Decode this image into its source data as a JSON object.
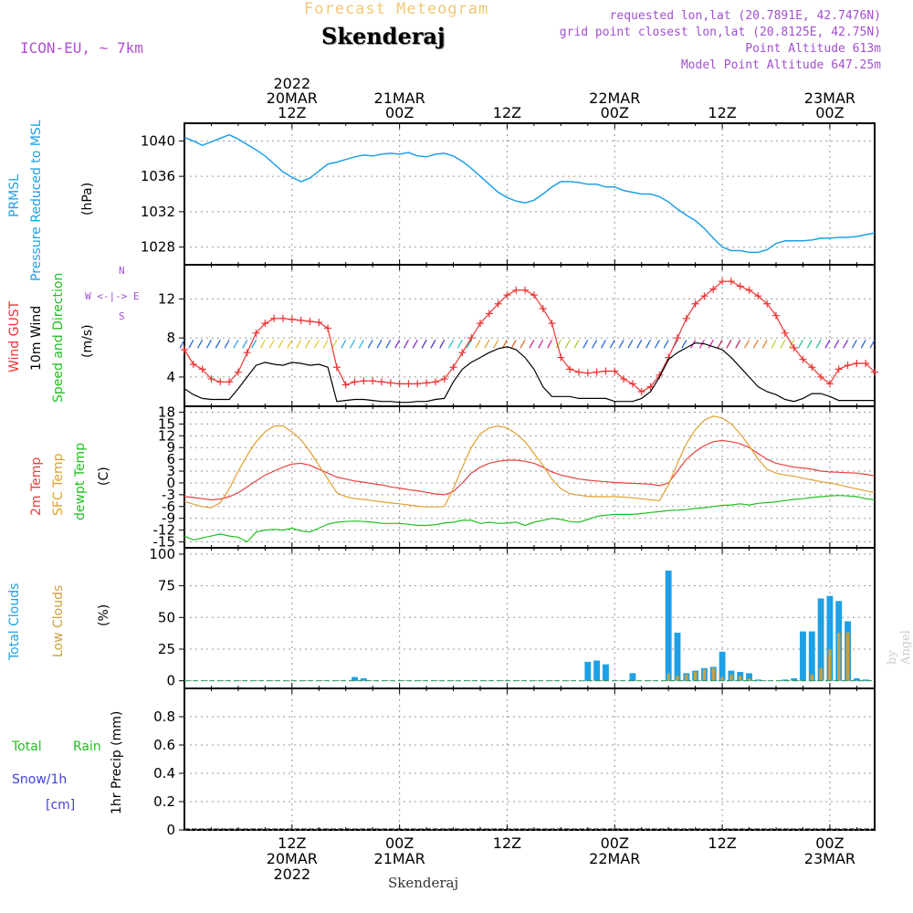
{
  "header": {
    "product": "Forecast Meteogram",
    "location": "Skenderaj",
    "model": "ICON-EU, ~ 7km",
    "requested": "requested lon,lat (20.7891E, 42.7476N)",
    "gridpoint": "grid point closest lon,lat (20.8125E, 42.75N)",
    "point_altitude": "Point Altitude 613m",
    "model_altitude": "Model Point Altitude 647.25m",
    "footer": "Skenderaj",
    "credit": "by Angel"
  },
  "time_axis": {
    "top": [
      {
        "h": 12,
        "lines": [
          "2022",
          "20MAR",
          "12Z"
        ]
      },
      {
        "h": 24,
        "lines": [
          "21MAR",
          "00Z"
        ]
      },
      {
        "h": 36,
        "lines": [
          "12Z"
        ]
      },
      {
        "h": 48,
        "lines": [
          "22MAR",
          "00Z"
        ]
      },
      {
        "h": 60,
        "lines": [
          "12Z"
        ]
      },
      {
        "h": 72,
        "lines": [
          "23MAR",
          "00Z"
        ]
      }
    ],
    "bottom": [
      {
        "h": 12,
        "lines": [
          "12Z",
          "20MAR",
          "2022"
        ]
      },
      {
        "h": 24,
        "lines": [
          "00Z",
          "21MAR"
        ]
      },
      {
        "h": 36,
        "lines": [
          "12Z"
        ]
      },
      {
        "h": 48,
        "lines": [
          "00Z",
          "22MAR"
        ]
      },
      {
        "h": 60,
        "lines": [
          "12Z"
        ]
      },
      {
        "h": 72,
        "lines": [
          "00Z",
          "23MAR"
        ]
      }
    ]
  },
  "labels": {
    "prmsl": "PRMSL",
    "prmsl2": "Pressure Reduced to MSL",
    "hpa": "(hPa)",
    "gust": "Wind GUST",
    "wind10": "10m Wind",
    "speed_dir": "Speed and Direction",
    "ms": "(m/s)",
    "compass_n": "N",
    "compass_s": "S",
    "compass_we": "W <-|-> E",
    "temp2m": "2m Temp",
    "sfctemp": "SFC Temp",
    "dewpt": "dewpt Temp",
    "degc": "(C)",
    "total_clouds": "Total Clouds",
    "low_clouds": "Low Clouds",
    "pct": "(%)",
    "total": "Total",
    "rain": "Rain",
    "snow": "Snow/1h",
    "cm": "[cm]",
    "precip": "1hr Precip (mm)"
  },
  "colors": {
    "pressure": "#1ea0e6",
    "gust": "#ee3333",
    "wind": "#000000",
    "temp2m": "#e84040",
    "sfc": "#e0a030",
    "dewpt": "#20c020",
    "total_clouds": "#1ea0e6",
    "low_clouds": "#c8a040",
    "rain": "#20c020",
    "snow": "#4040e0"
  },
  "chart_data": [
    {
      "type": "line",
      "title": "PRMSL Pressure Reduced to MSL",
      "ylabel": "(hPa)",
      "ylim": [
        1026,
        1042
      ],
      "yticks": [
        1028,
        1032,
        1036,
        1040
      ],
      "x_hours": [
        0,
        1,
        2,
        3,
        4,
        5,
        6,
        7,
        8,
        9,
        10,
        11,
        12,
        13,
        14,
        15,
        16,
        17,
        18,
        19,
        20,
        21,
        22,
        23,
        24,
        25,
        26,
        27,
        28,
        29,
        30,
        31,
        32,
        33,
        34,
        35,
        36,
        37,
        38,
        39,
        40,
        41,
        42,
        43,
        44,
        45,
        46,
        47,
        48,
        49,
        50,
        51,
        52,
        53,
        54,
        55,
        56,
        57,
        58,
        59,
        60,
        61,
        62,
        63,
        64,
        65,
        66,
        67,
        68,
        69,
        70,
        71,
        72,
        73,
        74,
        75,
        76,
        77
      ],
      "series": [
        {
          "name": "PRMSL",
          "values": [
            1040.4,
            1040.0,
            1039.5,
            1039.9,
            1040.3,
            1040.7,
            1040.2,
            1039.6,
            1039.0,
            1038.3,
            1037.4,
            1036.5,
            1035.9,
            1035.4,
            1035.8,
            1036.6,
            1037.4,
            1037.6,
            1037.9,
            1038.2,
            1038.4,
            1038.3,
            1038.5,
            1038.6,
            1038.5,
            1038.7,
            1038.3,
            1038.2,
            1038.5,
            1038.6,
            1038.3,
            1037.7,
            1036.9,
            1036.0,
            1035.1,
            1034.2,
            1033.6,
            1033.2,
            1033.0,
            1033.3,
            1034.0,
            1034.8,
            1035.4,
            1035.4,
            1035.3,
            1035.1,
            1035.1,
            1034.8,
            1034.8,
            1034.4,
            1034.2,
            1034.0,
            1034.0,
            1033.7,
            1033.1,
            1032.3,
            1031.6,
            1031.0,
            1030.1,
            1029.0,
            1028.0,
            1027.6,
            1027.6,
            1027.4,
            1027.4,
            1027.7,
            1028.4,
            1028.7,
            1028.7,
            1028.7,
            1028.8,
            1029.0,
            1029.0,
            1029.1,
            1029.1,
            1029.2,
            1029.4,
            1029.6
          ]
        }
      ]
    },
    {
      "type": "line",
      "title": "Wind GUST / 10m Wind Speed and Direction",
      "ylabel": "(m/s)",
      "ylim": [
        1,
        15.5
      ],
      "yticks": [
        4,
        8,
        12
      ],
      "x_hours": [
        0,
        1,
        2,
        3,
        4,
        5,
        6,
        7,
        8,
        9,
        10,
        11,
        12,
        13,
        14,
        15,
        16,
        17,
        18,
        19,
        20,
        21,
        22,
        23,
        24,
        25,
        26,
        27,
        28,
        29,
        30,
        31,
        32,
        33,
        34,
        35,
        36,
        37,
        38,
        39,
        40,
        41,
        42,
        43,
        44,
        45,
        46,
        47,
        48,
        49,
        50,
        51,
        52,
        53,
        54,
        55,
        56,
        57,
        58,
        59,
        60,
        61,
        62,
        63,
        64,
        65,
        66,
        67,
        68,
        69,
        70,
        71,
        72,
        73,
        74,
        75,
        76,
        77
      ],
      "series": [
        {
          "name": "Wind GUST",
          "values": [
            6.8,
            5.3,
            4.8,
            3.8,
            3.5,
            3.5,
            4.5,
            6.5,
            8.5,
            9.5,
            10.0,
            10.0,
            9.9,
            9.8,
            9.7,
            9.6,
            9.0,
            5.0,
            3.2,
            3.5,
            3.6,
            3.6,
            3.5,
            3.4,
            3.3,
            3.3,
            3.3,
            3.4,
            3.5,
            3.8,
            5.0,
            6.5,
            8.0,
            9.5,
            10.5,
            11.5,
            12.4,
            12.9,
            12.9,
            12.4,
            11.0,
            9.5,
            6.0,
            4.8,
            4.5,
            4.4,
            4.5,
            4.6,
            4.6,
            3.8,
            3.3,
            2.5,
            3.0,
            4.2,
            6.0,
            8.0,
            10.0,
            11.5,
            12.3,
            13.0,
            13.8,
            13.8,
            13.3,
            12.9,
            12.3,
            11.5,
            10.3,
            8.5,
            7.0,
            5.8,
            5.0,
            4.0,
            3.3,
            4.8,
            5.2,
            5.4,
            5.4,
            4.5
          ]
        },
        {
          "name": "10m Wind",
          "values": [
            2.8,
            2.2,
            1.8,
            1.7,
            1.7,
            1.7,
            2.8,
            4.0,
            5.2,
            5.5,
            5.3,
            5.2,
            5.5,
            5.4,
            5.2,
            5.3,
            5.0,
            1.5,
            1.6,
            1.7,
            1.7,
            1.6,
            1.5,
            1.5,
            1.4,
            1.4,
            1.5,
            1.5,
            1.7,
            1.8,
            3.5,
            4.8,
            5.5,
            6.0,
            6.5,
            6.9,
            7.1,
            6.8,
            6.0,
            4.8,
            3.0,
            2.0,
            2.0,
            2.0,
            1.8,
            1.8,
            1.8,
            1.8,
            1.5,
            1.5,
            1.5,
            1.8,
            2.5,
            4.0,
            5.8,
            6.5,
            7.0,
            7.5,
            7.4,
            7.1,
            6.8,
            6.0,
            5.0,
            4.0,
            3.0,
            2.5,
            2.2,
            1.7,
            1.5,
            1.8,
            2.3,
            2.3,
            2.0,
            1.6,
            1.6,
            1.6,
            1.6,
            1.6
          ]
        }
      ]
    },
    {
      "type": "line",
      "title": "2m Temp / SFC Temp / dewpt Temp",
      "ylabel": "(C)",
      "ylim": [
        -16.5,
        19.5
      ],
      "yticks": [
        -15,
        -12,
        -9,
        -6,
        -3,
        0,
        3,
        6,
        9,
        12,
        15,
        18
      ],
      "x_hours": [
        0,
        1,
        2,
        3,
        4,
        5,
        6,
        7,
        8,
        9,
        10,
        11,
        12,
        13,
        14,
        15,
        16,
        17,
        18,
        19,
        20,
        21,
        22,
        23,
        24,
        25,
        26,
        27,
        28,
        29,
        30,
        31,
        32,
        33,
        34,
        35,
        36,
        37,
        38,
        39,
        40,
        41,
        42,
        43,
        44,
        45,
        46,
        47,
        48,
        49,
        50,
        51,
        52,
        53,
        54,
        55,
        56,
        57,
        58,
        59,
        60,
        61,
        62,
        63,
        64,
        65,
        66,
        67,
        68,
        69,
        70,
        71,
        72,
        73,
        74,
        75,
        76,
        77
      ],
      "series": [
        {
          "name": "2m Temp",
          "values": [
            -3.5,
            -3.7,
            -4.0,
            -4.3,
            -4.1,
            -3.5,
            -2.5,
            -1.0,
            0.5,
            2.0,
            3.0,
            4.0,
            4.8,
            5.0,
            4.5,
            3.5,
            2.5,
            1.5,
            1.0,
            0.5,
            0.2,
            -0.2,
            -0.5,
            -1.0,
            -1.3,
            -1.7,
            -2.0,
            -2.4,
            -2.8,
            -3.0,
            -2.2,
            0.0,
            2.5,
            4.0,
            5.0,
            5.5,
            5.8,
            5.8,
            5.5,
            5.0,
            4.0,
            2.8,
            2.0,
            1.5,
            1.0,
            0.7,
            0.5,
            0.3,
            0.1,
            0.0,
            -0.1,
            -0.2,
            -0.3,
            -0.7,
            0.0,
            3.0,
            6.0,
            8.0,
            9.5,
            10.5,
            10.8,
            10.5,
            10.0,
            9.0,
            7.5,
            6.0,
            5.0,
            4.5,
            4.0,
            3.8,
            3.5,
            3.0,
            2.8,
            2.7,
            2.6,
            2.5,
            2.2,
            1.8
          ]
        },
        {
          "name": "SFC Temp",
          "values": [
            -4.7,
            -5.4,
            -6.0,
            -6.3,
            -5.0,
            -1.5,
            3.0,
            7.0,
            10.5,
            13.0,
            14.5,
            14.5,
            13.0,
            11.0,
            8.0,
            4.5,
            1.0,
            -2.5,
            -3.5,
            -4.0,
            -4.2,
            -4.5,
            -4.8,
            -5.1,
            -5.3,
            -5.6,
            -5.9,
            -6.1,
            -6.1,
            -6.0,
            -1.5,
            4.0,
            9.0,
            12.5,
            14.0,
            14.5,
            14.0,
            12.5,
            10.5,
            7.5,
            4.5,
            1.0,
            -1.5,
            -2.7,
            -3.1,
            -3.4,
            -3.5,
            -3.5,
            -3.5,
            -3.6,
            -3.8,
            -4.0,
            -4.3,
            -4.5,
            -0.5,
            5.0,
            10.0,
            13.5,
            16.0,
            17.0,
            16.5,
            15.0,
            12.5,
            9.5,
            6.0,
            3.5,
            2.5,
            2.0,
            1.7,
            1.2,
            0.8,
            0.3,
            0.0,
            -0.5,
            -1.0,
            -1.5,
            -2.0,
            -2.5
          ]
        },
        {
          "name": "dewpt Temp",
          "values": [
            -13.5,
            -14.5,
            -14.0,
            -13.5,
            -13.0,
            -13.5,
            -13.8,
            -15.0,
            -12.5,
            -12.0,
            -11.8,
            -12.0,
            -11.5,
            -12.2,
            -12.5,
            -11.5,
            -10.5,
            -10.0,
            -9.8,
            -9.7,
            -9.8,
            -10.0,
            -10.3,
            -10.3,
            -10.3,
            -10.5,
            -10.8,
            -10.8,
            -10.6,
            -10.2,
            -10.0,
            -9.5,
            -9.5,
            -10.3,
            -10.0,
            -10.3,
            -10.2,
            -10.0,
            -10.8,
            -10.0,
            -9.5,
            -9.0,
            -9.3,
            -9.8,
            -10.0,
            -9.3,
            -8.5,
            -8.2,
            -8.0,
            -8.0,
            -8.0,
            -7.8,
            -7.5,
            -7.3,
            -7.0,
            -6.9,
            -6.8,
            -6.5,
            -6.3,
            -6.0,
            -5.7,
            -5.6,
            -5.3,
            -5.6,
            -5.2,
            -5.0,
            -4.8,
            -4.5,
            -4.2,
            -4.0,
            -3.7,
            -3.5,
            -3.3,
            -3.2,
            -3.3,
            -3.5,
            -4.0,
            -4.3
          ]
        }
      ]
    },
    {
      "type": "bar",
      "title": "Total Clouds / Low Clouds",
      "ylabel": "(%)",
      "ylim": [
        -6,
        105
      ],
      "yticks": [
        0,
        25,
        50,
        75,
        100
      ],
      "x_hours": [
        0,
        1,
        2,
        3,
        4,
        5,
        6,
        7,
        8,
        9,
        10,
        11,
        12,
        13,
        14,
        15,
        16,
        17,
        18,
        19,
        20,
        21,
        22,
        23,
        24,
        25,
        26,
        27,
        28,
        29,
        30,
        31,
        32,
        33,
        34,
        35,
        36,
        37,
        38,
        39,
        40,
        41,
        42,
        43,
        44,
        45,
        46,
        47,
        48,
        49,
        50,
        51,
        52,
        53,
        54,
        55,
        56,
        57,
        58,
        59,
        60,
        61,
        62,
        63,
        64,
        65,
        66,
        67,
        68,
        69,
        70,
        71,
        72,
        73,
        74,
        75,
        76,
        77
      ],
      "series": [
        {
          "name": "Total Clouds",
          "values": [
            0,
            0,
            0,
            0,
            0,
            0,
            0,
            0,
            0,
            0,
            0,
            0,
            0,
            0,
            0,
            0,
            0,
            0,
            0,
            3,
            2,
            0,
            0,
            0,
            0,
            0,
            0,
            0,
            0,
            0,
            0,
            0,
            0,
            0,
            0,
            0,
            0,
            0,
            0,
            0,
            0,
            0,
            0,
            0,
            0,
            15,
            16,
            13,
            0,
            0,
            6,
            0,
            0,
            0,
            87,
            38,
            6,
            8,
            10,
            11,
            23,
            8,
            7,
            6,
            1,
            0,
            0,
            1,
            2,
            39,
            39,
            65,
            67,
            63,
            47,
            2,
            1,
            0
          ]
        },
        {
          "name": "Low Clouds",
          "values": [
            0,
            0,
            0,
            0,
            0,
            0,
            0,
            0,
            0,
            0,
            0,
            0,
            0,
            0,
            0,
            0,
            0,
            0,
            0,
            0,
            0,
            0,
            0,
            0,
            0,
            0,
            0,
            0,
            0,
            0,
            0,
            0,
            0,
            0,
            0,
            0,
            0,
            0,
            0,
            0,
            0,
            0,
            0,
            0,
            0,
            0,
            0,
            0,
            0,
            0,
            0,
            0,
            0,
            0,
            6,
            4,
            5,
            7,
            9,
            10,
            3,
            5,
            4,
            2,
            0,
            0,
            0,
            0,
            0,
            0,
            5,
            10,
            25,
            38,
            38,
            0,
            0,
            0
          ]
        }
      ]
    },
    {
      "type": "bar",
      "title": "Total Rain / Snow/1h",
      "ylabel": "1hr Precip (mm)",
      "ylim": [
        0,
        1.0
      ],
      "yticks": [
        0,
        0.2,
        0.4,
        0.6,
        0.8
      ],
      "ytick_labels": [
        "0",
        "0.2",
        "0.4",
        "0.6",
        "0.8"
      ],
      "x_hours": [
        0,
        77
      ],
      "series": [
        {
          "name": "Total Rain",
          "values": [
            0,
            0
          ]
        },
        {
          "name": "Snow/1h",
          "values": [
            0,
            0
          ]
        }
      ]
    }
  ]
}
